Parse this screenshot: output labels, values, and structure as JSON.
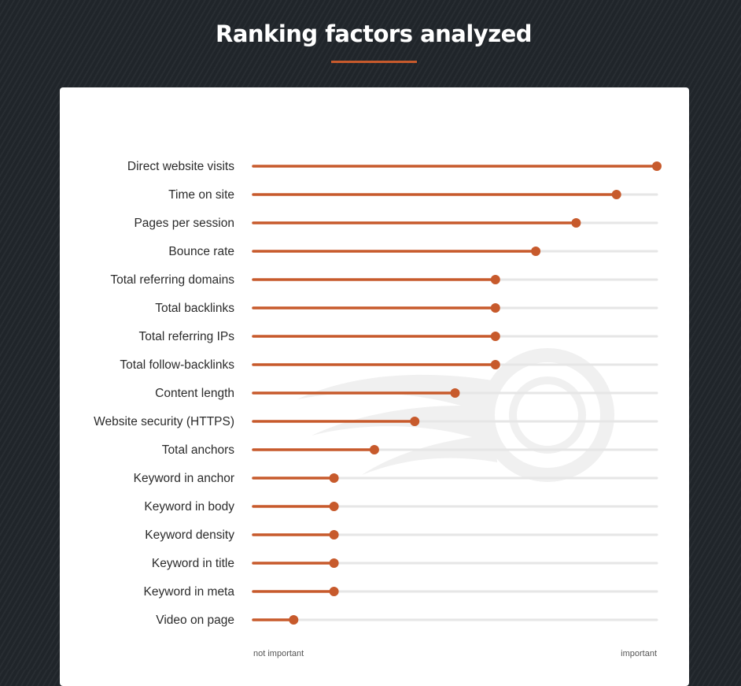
{
  "page": {
    "title": "Ranking factors analyzed"
  },
  "colors": {
    "accent": "#c75a2c",
    "track": "#e6e6e6",
    "watermark": "#f0f0f0"
  },
  "watermark": {
    "icon": "brand-logo-icon"
  },
  "chart_data": {
    "type": "lollipop",
    "orientation": "horizontal",
    "title": "Ranking factors analyzed",
    "categories": [
      "Direct website visits",
      "Time on site",
      "Pages per session",
      "Bounce rate",
      "Total referring domains",
      "Total backlinks",
      "Total referring IPs",
      "Total follow-backlinks",
      "Content length",
      "Website security (HTTPS)",
      "Total anchors",
      "Keyword in anchor",
      "Keyword in body",
      "Keyword density",
      "Keyword in title",
      "Keyword in meta",
      "Video on page"
    ],
    "values": [
      1.0,
      0.9,
      0.8,
      0.7,
      0.6,
      0.6,
      0.6,
      0.6,
      0.5,
      0.4,
      0.3,
      0.2,
      0.2,
      0.2,
      0.2,
      0.2,
      0.1
    ],
    "xlim": [
      0,
      1
    ],
    "axis_min_label": "not important",
    "axis_max_label": "important",
    "grid": false,
    "legend": "none"
  }
}
